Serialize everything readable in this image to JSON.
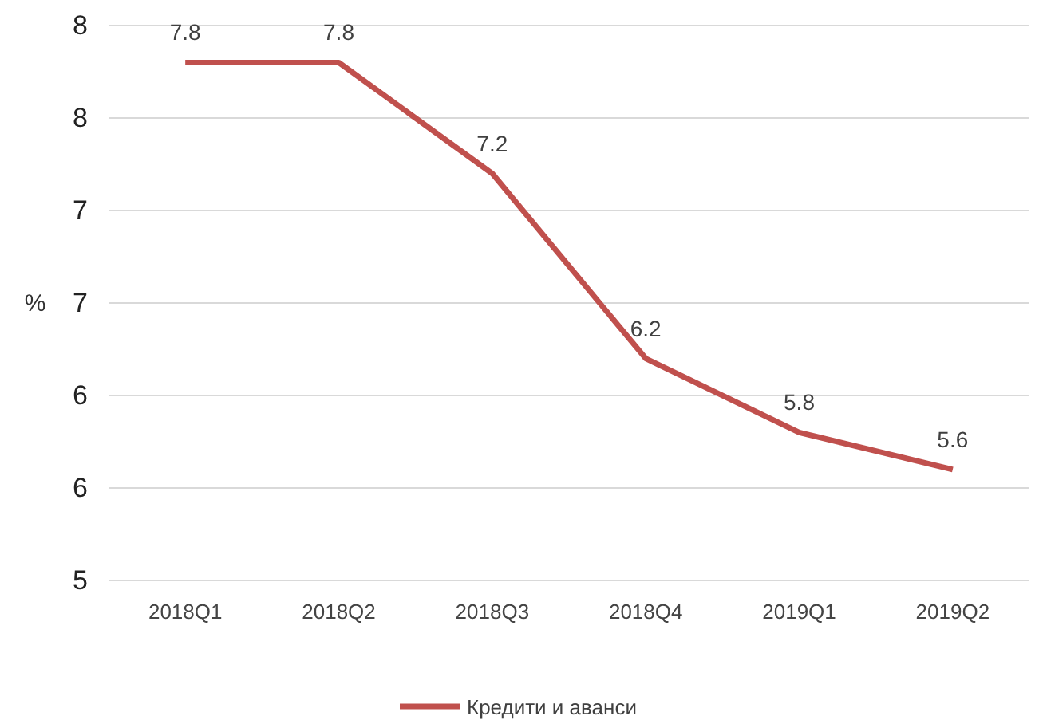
{
  "chart_data": {
    "type": "line",
    "ylabel": "%",
    "categories": [
      "2018Q1",
      "2018Q2",
      "2018Q3",
      "2018Q4",
      "2019Q1",
      "2019Q2"
    ],
    "series": [
      {
        "name": "Кредити и аванси",
        "color": "#c0504d",
        "values": [
          7.8,
          7.8,
          7.2,
          6.2,
          5.8,
          5.6
        ]
      }
    ],
    "ylim": [
      5,
      8
    ],
    "yticks": [
      5,
      {
        "value": 5.5,
        "label": "6"
      },
      6,
      {
        "value": 6.5,
        "label": "7"
      },
      7,
      {
        "value": 7.5,
        "label": "8"
      },
      8
    ],
    "grid": "y",
    "data_labels": true,
    "legend": "bottom",
    "marker": "none",
    "line_style": "solid"
  }
}
